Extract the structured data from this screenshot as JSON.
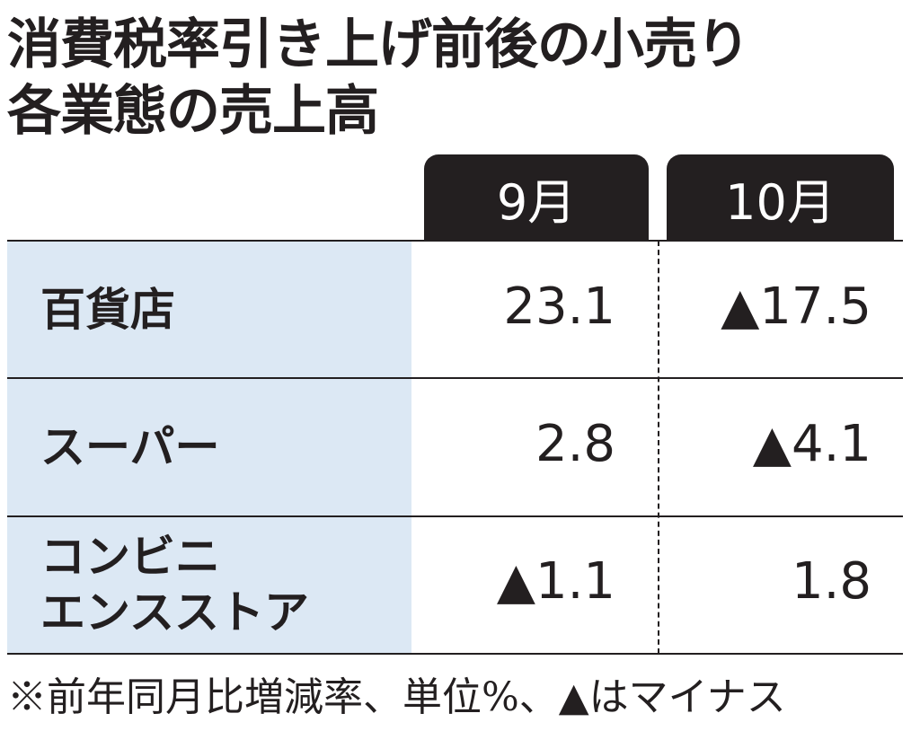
{
  "header": {
    "title_lines": [
      "消費税率引き上げ前後の小売り",
      "各業態の売上高"
    ]
  },
  "table": {
    "columns": [
      "9月",
      "10月"
    ],
    "rows": [
      {
        "label_lines": [
          "百貨店"
        ],
        "cells": [
          "23.1",
          "▲17.5"
        ]
      },
      {
        "label_lines": [
          "スーパー"
        ],
        "cells": [
          "2.8",
          "▲4.1"
        ]
      },
      {
        "label_lines": [
          "コンビニ",
          "エンスストア"
        ],
        "cells": [
          "▲1.1",
          "1.8"
        ]
      }
    ]
  },
  "footnote": "※前年同月比増減率、単位%、▲はマイナス"
}
